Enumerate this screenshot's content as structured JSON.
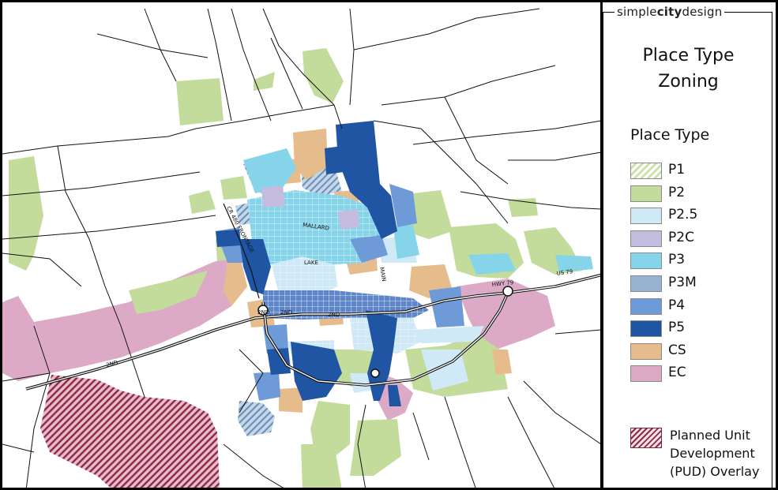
{
  "brand": {
    "prefix": "simple",
    "bold": "city",
    "suffix": "design"
  },
  "legend": {
    "title_line1": "Place Type",
    "title_line2": "Zoning",
    "subtitle": "Place Type",
    "items": [
      {
        "label": "P1",
        "color": "#c8e3a8",
        "pattern": "hatch-light"
      },
      {
        "label": "P2",
        "color": "#c3dc9c"
      },
      {
        "label": "P2.5",
        "color": "#cfe9f6"
      },
      {
        "label": "P2C",
        "color": "#c3bcde"
      },
      {
        "label": "P3",
        "color": "#86d4ea"
      },
      {
        "label": "P3M",
        "color": "#97b3d1"
      },
      {
        "label": "P4",
        "color": "#6f9ad8"
      },
      {
        "label": "P5",
        "color": "#1f55a3"
      },
      {
        "label": "CS",
        "color": "#e6bc8c"
      },
      {
        "label": "EC",
        "color": "#dcaac6"
      }
    ],
    "pud": {
      "line1": "Planned Unit",
      "line2": "Development",
      "line3": "(PUD) Overlay",
      "color": "#8c2a43"
    }
  },
  "map": {
    "road_labels": {
      "mallard": "MALLARD",
      "lake": "LAKE",
      "main": "MAIN",
      "second_a": "2ND",
      "second_b": "2ND",
      "second_c": "2ND",
      "second_d": "2ND",
      "hwy79": "HWY 79",
      "us79": "US 79",
      "frontage": "CR 480 FRONTAGE"
    },
    "colors": {
      "road": "#111111",
      "highway": "#111111"
    }
  }
}
